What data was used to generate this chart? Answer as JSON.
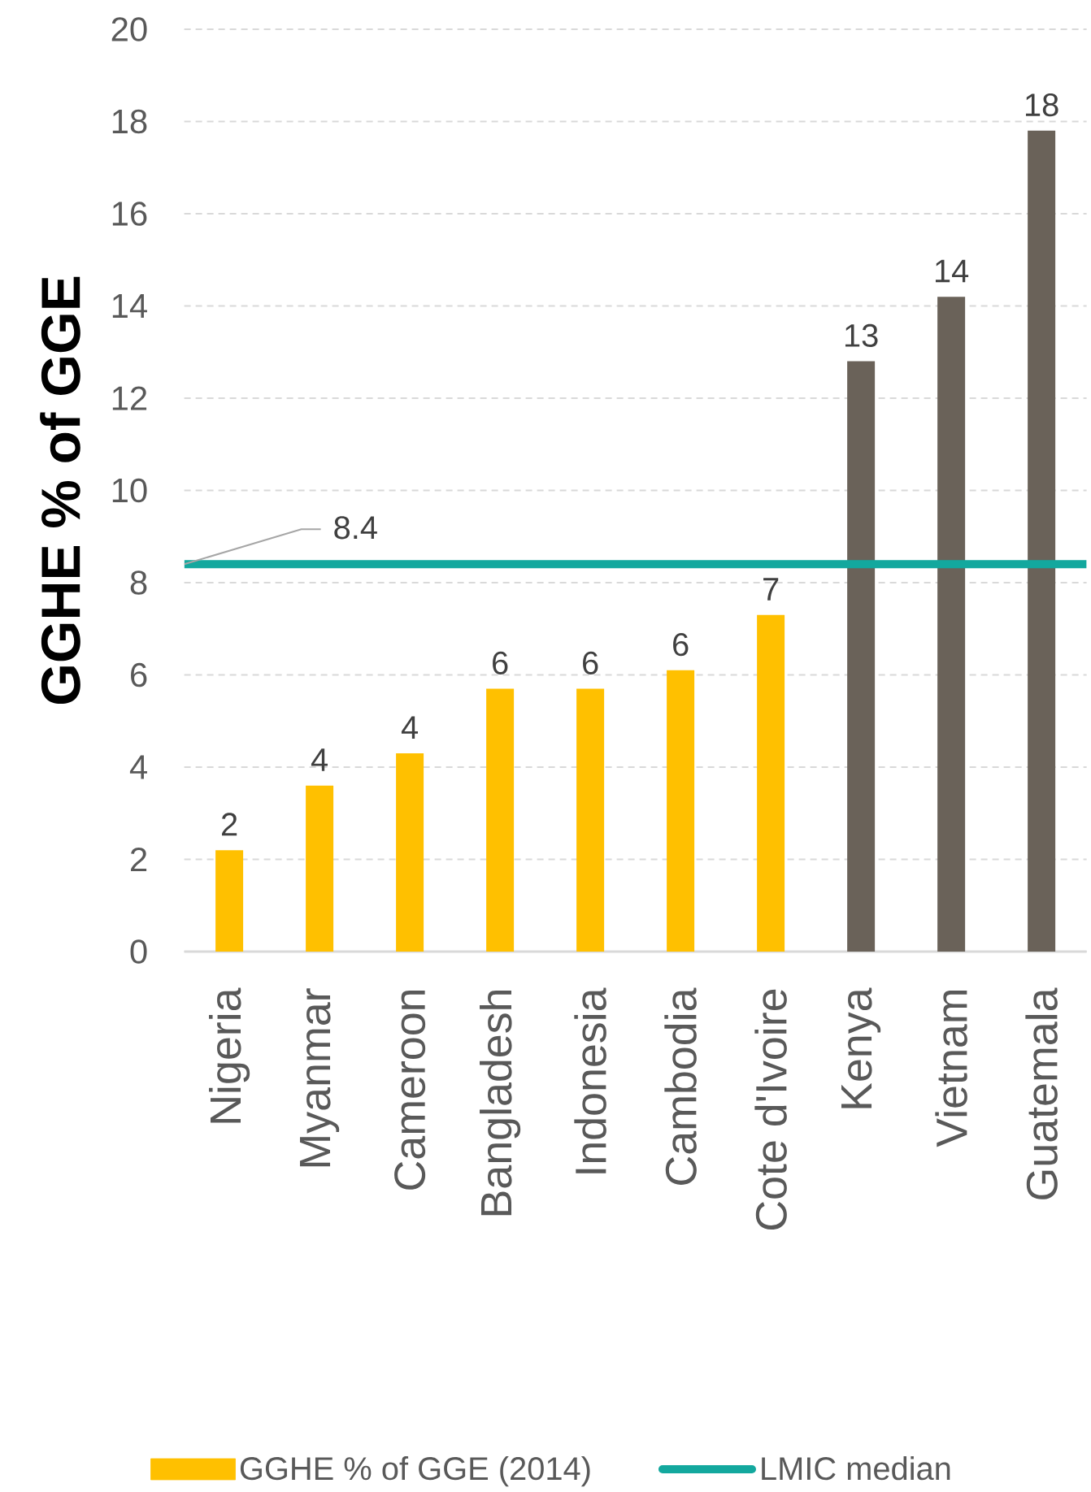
{
  "chart_data": {
    "type": "bar",
    "ylabel": "GGHE % of GGE",
    "categories": [
      "Nigeria",
      "Myanmar",
      "Cameroon",
      "Bangladesh",
      "Indonesia",
      "Cambodia",
      "Cote d'Ivoire",
      "Kenya",
      "Vietnam",
      "Guatemala"
    ],
    "series": [
      {
        "name": "GGHE % of GGE (2014)",
        "color": "#ffc000",
        "colors": [
          "#ffc000",
          "#ffc000",
          "#ffc000",
          "#ffc000",
          "#ffc000",
          "#ffc000",
          "#ffc000",
          "#6a6259",
          "#6a6259",
          "#6a6259"
        ],
        "values": [
          2.2,
          3.6,
          4.3,
          5.7,
          5.7,
          6.1,
          7.3,
          12.8,
          14.2,
          17.8
        ],
        "value_labels": [
          "2",
          "4",
          "4",
          "6",
          "6",
          "6",
          "7",
          "13",
          "14",
          "18"
        ]
      }
    ],
    "ylim": [
      0,
      20
    ],
    "yticks": [
      0,
      2,
      4,
      6,
      8,
      10,
      12,
      14,
      16,
      18,
      20
    ],
    "grid": "y",
    "legend": "bottom",
    "ref_lines": [
      {
        "axis": "y",
        "value": 8.4,
        "label": "LMIC median",
        "color": "#13a89e"
      }
    ],
    "annotations": [
      {
        "text": "8.4",
        "y": 8.4
      }
    ]
  }
}
